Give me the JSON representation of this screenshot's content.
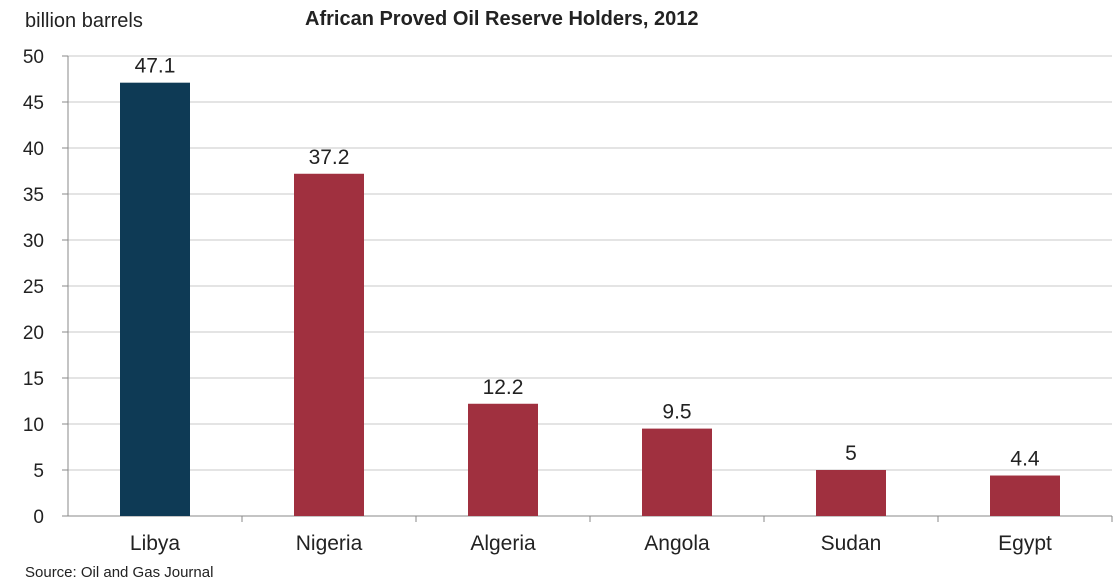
{
  "chart_data": {
    "type": "bar",
    "title": "African Proved Oil Reserve Holders, 2012",
    "ylabel": "billion barrels",
    "xlabel": "",
    "categories": [
      "Libya",
      "Nigeria",
      "Algeria",
      "Angola",
      "Sudan",
      "Egypt"
    ],
    "values": [
      47.1,
      37.2,
      12.2,
      9.5,
      5,
      4.4
    ],
    "value_labels": [
      "47.1",
      "37.2",
      "12.2",
      "9.5",
      "5",
      "4.4"
    ],
    "ylim": [
      0,
      50
    ],
    "yticks": [
      0,
      5,
      10,
      15,
      20,
      25,
      30,
      35,
      40,
      45,
      50
    ],
    "grid": true,
    "colors": [
      "#0e3a55",
      "#a0303f",
      "#a0303f",
      "#a0303f",
      "#a0303f",
      "#a0303f"
    ],
    "source": "Source: Oil and Gas Journal"
  }
}
